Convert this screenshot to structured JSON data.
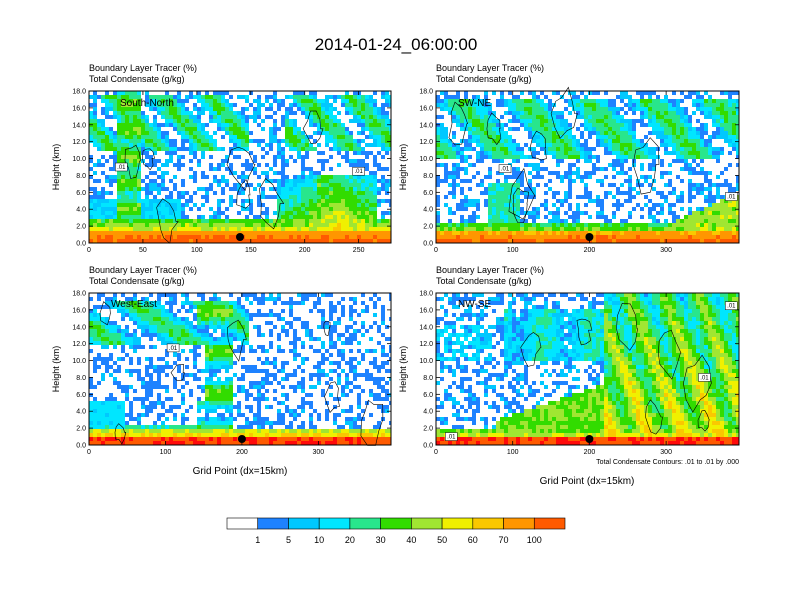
{
  "figure": {
    "title": "2014-01-24_06:00:00",
    "x_axis_name": "Grid Point (dx=15km)",
    "y_axis_name": "Height (km)",
    "contour_note": "Total Condensate Contours: .01 to .01 by .000",
    "fill_label": "Boundary Layer Tracer   (%)",
    "contour_label": "Total Condensate   (g/kg)",
    "contour_value_label": ".01"
  },
  "chart_data": [
    {
      "type": "heatmap",
      "panel": "South-North",
      "title": "Boundary Layer Tracer (%) / Total Condensate (g/kg)",
      "xlabel": "",
      "ylabel": "Height (km)",
      "xlim": [
        0,
        280
      ],
      "ylim": [
        0,
        18
      ],
      "xticks": [
        0,
        50,
        100,
        150,
        200,
        250
      ],
      "yticks": [
        0.0,
        2.0,
        4.0,
        6.0,
        8.0,
        10.0,
        12.0,
        14.0,
        16.0,
        18.0
      ],
      "marker_x": 140,
      "contour_labels": [
        {
          "x": 30,
          "y": 9.0,
          "text": ".01"
        },
        {
          "x": 250,
          "y": 8.5,
          "text": ".01"
        }
      ]
    },
    {
      "type": "heatmap",
      "panel": "SW-NE",
      "title": "Boundary Layer Tracer (%) / Total Condensate (g/kg)",
      "xlabel": "",
      "ylabel": "Height (km)",
      "xlim": [
        0,
        395
      ],
      "ylim": [
        0,
        18
      ],
      "xticks": [
        0,
        100,
        200,
        300
      ],
      "yticks": [
        0.0,
        2.0,
        4.0,
        6.0,
        8.0,
        10.0,
        12.0,
        14.0,
        16.0,
        18.0
      ],
      "marker_x": 200,
      "contour_labels": [
        {
          "x": 90,
          "y": 8.8,
          "text": ".01"
        },
        {
          "x": 385,
          "y": 5.5,
          "text": ".01"
        }
      ]
    },
    {
      "type": "heatmap",
      "panel": "West-East",
      "title": "Boundary Layer Tracer (%) / Total Condensate (g/kg)",
      "xlabel": "Grid Point (dx=15km)",
      "ylabel": "Height (km)",
      "xlim": [
        0,
        395
      ],
      "ylim": [
        0,
        18
      ],
      "xticks": [
        0,
        100,
        200,
        300
      ],
      "yticks": [
        0.0,
        2.0,
        4.0,
        6.0,
        8.0,
        10.0,
        12.0,
        14.0,
        16.0,
        18.0
      ],
      "marker_x": 200,
      "contour_labels": [
        {
          "x": 110,
          "y": 11.5,
          "text": ".01"
        }
      ]
    },
    {
      "type": "heatmap",
      "panel": "NW-SE",
      "title": "Boundary Layer Tracer (%) / Total Condensate (g/kg)",
      "xlabel": "Grid Point (dx=15km)",
      "ylabel": "Height (km)",
      "xlim": [
        0,
        395
      ],
      "ylim": [
        0,
        18
      ],
      "xticks": [
        0,
        100,
        200,
        300
      ],
      "yticks": [
        0.0,
        2.0,
        4.0,
        6.0,
        8.0,
        10.0,
        12.0,
        14.0,
        16.0,
        18.0
      ],
      "marker_x": 200,
      "contour_labels": [
        {
          "x": 350,
          "y": 8.0,
          "text": ".01"
        },
        {
          "x": 385,
          "y": 16.5,
          "text": ".01"
        },
        {
          "x": 20,
          "y": 1.0,
          "text": ".01"
        }
      ]
    }
  ],
  "colorbar": {
    "labels": [
      "1",
      "5",
      "10",
      "20",
      "30",
      "40",
      "50",
      "60",
      "70",
      "100"
    ],
    "colors": [
      "#ffffff",
      "#1e82ff",
      "#00c8ff",
      "#00e6ff",
      "#28e68c",
      "#32dc00",
      "#a0e632",
      "#f0f000",
      "#fac800",
      "#ff9600",
      "#ff5a00",
      "#ff0a0a"
    ]
  }
}
